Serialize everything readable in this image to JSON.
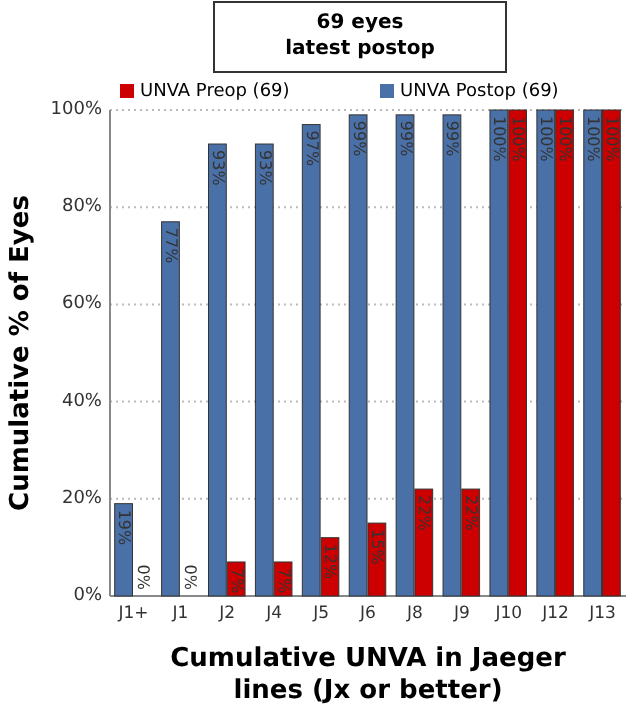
{
  "chart_data": {
    "type": "bar",
    "title": "69 eyes\nlatest postop",
    "xlabel": "Cumulative UNVA in Jaeger\nlines (Jx or better)",
    "ylabel": "Cumulative % of Eyes",
    "categories": [
      "J1+",
      "J1",
      "J2",
      "J4",
      "J5",
      "J6",
      "J8",
      "J9",
      "J10",
      "J12",
      "J13"
    ],
    "series": [
      {
        "name": "UNVA Postop (69)",
        "color": "#4a70a8",
        "values": [
          19,
          77,
          93,
          93,
          97,
          99,
          99,
          99,
          100,
          100,
          100
        ],
        "value_labels": [
          "19%",
          "77%",
          "93%",
          "93%",
          "97%",
          "99%",
          "99%",
          "99%",
          "100%",
          "100%",
          "100%"
        ]
      },
      {
        "name": "UNVA Preop (69)",
        "color": "#cc0000",
        "values": [
          0,
          0,
          7,
          7,
          12,
          15,
          22,
          22,
          100,
          100,
          100
        ],
        "value_labels": [
          "0%",
          "0%",
          "7%",
          "7%",
          "12%",
          "15%",
          "22%",
          "22%",
          "100%",
          "100%",
          "100%"
        ]
      }
    ],
    "ylim": [
      0,
      100
    ],
    "yticks": [
      {
        "value": 0,
        "label": "0%"
      },
      {
        "value": 20,
        "label": "20%"
      },
      {
        "value": 40,
        "label": "40%"
      },
      {
        "value": 60,
        "label": "60%"
      },
      {
        "value": 80,
        "label": "80%"
      },
      {
        "value": 100,
        "label": "100%"
      }
    ],
    "grid": "y",
    "legend": "top"
  }
}
